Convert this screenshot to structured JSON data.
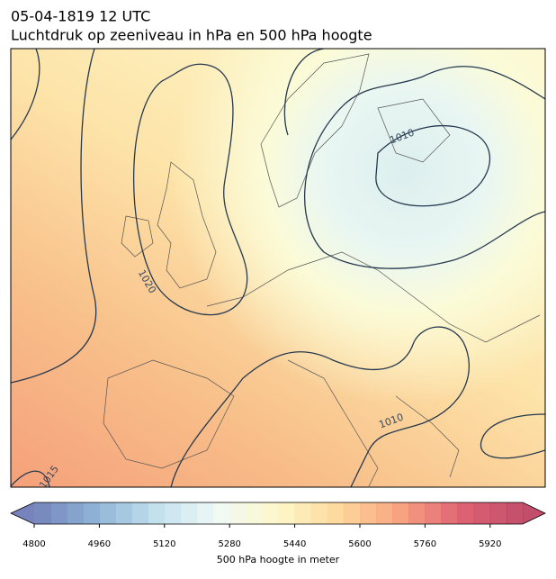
{
  "header": {
    "title": "05-04-1819 12 UTC",
    "subtitle": "Luchtdruk op zeeniveau in hPa en 500 hPa hoogte"
  },
  "map": {
    "contour_labels": [
      "1010",
      "1020",
      "1010",
      "1015"
    ]
  },
  "colorbar": {
    "label": "500 hPa hoogte in meter",
    "clim": [
      4800,
      6000
    ],
    "step": 40,
    "ticks": [
      4800,
      4960,
      5120,
      5280,
      5440,
      5600,
      5760,
      5920
    ],
    "colors": [
      "#5e6db0",
      "#7ba6cf",
      "#b8dcea",
      "#eef8f5",
      "#fdf6c0",
      "#fdd18a",
      "#f6926a",
      "#d8485c",
      "#b72f52"
    ]
  }
}
